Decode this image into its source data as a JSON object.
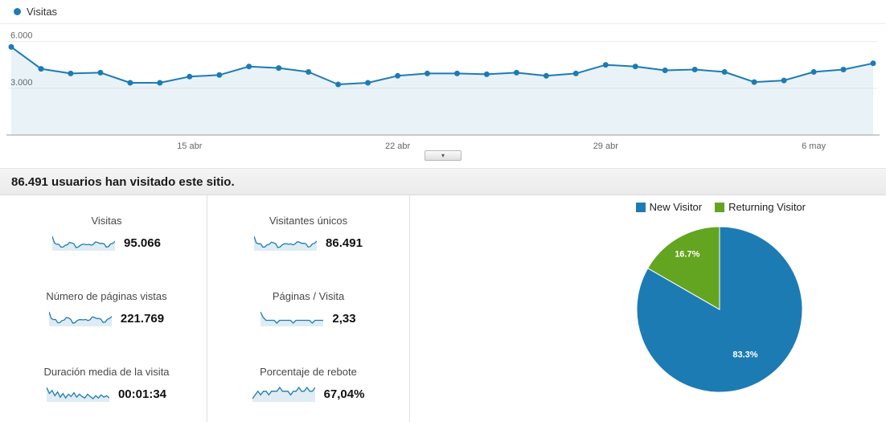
{
  "timeseries_legend": {
    "label": "Visitas",
    "dot_color": "#1d7bb4"
  },
  "chart_data": [
    {
      "type": "line",
      "title": "Visitas",
      "values": [
        5650,
        4250,
        3950,
        4000,
        3350,
        3350,
        3750,
        3850,
        4400,
        4300,
        4050,
        3250,
        3350,
        3800,
        3950,
        3950,
        3900,
        4000,
        3800,
        3950,
        4500,
        4400,
        4150,
        4200,
        4050,
        3400,
        3500,
        4050,
        4200,
        4600
      ],
      "ylim": [
        0,
        6600
      ],
      "yticks": [
        {
          "value": 3000,
          "label": "3.000"
        },
        {
          "value": 6000,
          "label": "6.000"
        }
      ],
      "xticks": [
        {
          "index": 6,
          "label": "15 abr"
        },
        {
          "index": 13,
          "label": "22 abr"
        },
        {
          "index": 20,
          "label": "29 abr"
        },
        {
          "index": 27,
          "label": "6 may"
        }
      ],
      "line_color": "#1d7bb4",
      "area_color": "rgba(29,123,180,0.10)",
      "grid": true,
      "legend_position": "top-left"
    },
    {
      "type": "pie",
      "labels": [
        "New Visitor",
        "Returning Visitor"
      ],
      "values": [
        83.3,
        16.7
      ],
      "slice_labels": [
        "83.3%",
        "16.7%"
      ],
      "colors": [
        "#1d7bb4",
        "#63a420"
      ],
      "legend_position": "top-right"
    }
  ],
  "controls": {
    "expand_chart": "▾"
  },
  "summary": {
    "text": "86.491 usuarios han visitado este sitio."
  },
  "metrics": [
    {
      "label": "Visitas",
      "value": "95.066",
      "spark": [
        57,
        43,
        40,
        40,
        34,
        34,
        38,
        39,
        44,
        43,
        41,
        33,
        34,
        38,
        40,
        40,
        39,
        40,
        38,
        40,
        45,
        44,
        42,
        42,
        41,
        34,
        35,
        41,
        42,
        46
      ]
    },
    {
      "label": "Visitantes únicos",
      "value": "86.491",
      "spark": [
        50,
        38,
        36,
        36,
        30,
        30,
        34,
        35,
        39,
        38,
        36,
        29,
        30,
        34,
        36,
        36,
        35,
        36,
        34,
        36,
        40,
        39,
        37,
        37,
        36,
        30,
        31,
        36,
        37,
        41
      ]
    },
    {
      "label": "Número de páginas vistas",
      "value": "221.769",
      "spark": [
        130,
        100,
        94,
        95,
        80,
        80,
        90,
        92,
        104,
        102,
        96,
        78,
        80,
        90,
        94,
        94,
        93,
        95,
        90,
        94,
        107,
        104,
        99,
        100,
        96,
        81,
        83,
        96,
        100,
        109
      ]
    },
    {
      "label": "Páginas / Visita",
      "value": "2,33",
      "spark": [
        26,
        24,
        23,
        23,
        23,
        23,
        22,
        23,
        23,
        23,
        23,
        23,
        22,
        23,
        23,
        23,
        23,
        23,
        23,
        22,
        23,
        23,
        23,
        23
      ]
    },
    {
      "label": "Duración media de la visita",
      "value": "00:01:34",
      "spark": [
        100,
        92,
        96,
        89,
        94,
        87,
        92,
        86,
        91,
        88,
        93,
        87,
        91,
        88,
        86,
        91,
        88,
        85,
        89,
        86,
        90,
        87,
        89,
        86
      ]
    },
    {
      "label": "Porcentaje de rebote",
      "value": "67,04%",
      "spark": [
        65,
        66,
        67,
        66,
        67,
        67,
        66,
        67,
        67,
        67,
        68,
        67,
        67,
        67,
        66,
        67,
        67,
        68,
        67,
        67,
        68,
        67,
        67,
        68
      ]
    }
  ]
}
